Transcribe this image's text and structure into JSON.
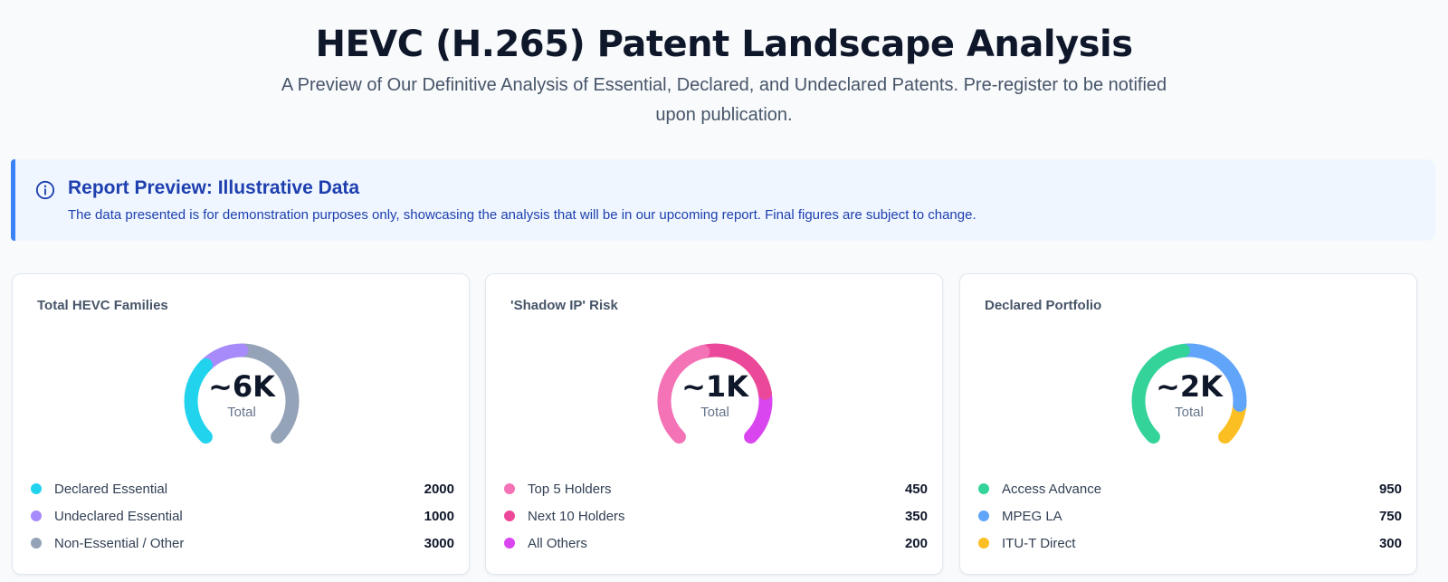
{
  "header": {
    "title": "HEVC (H.265) Patent Landscape Analysis",
    "subtitle": "A Preview of Our Definitive Analysis of Essential, Declared, and Undeclared Patents. Pre-register to be notified upon publication."
  },
  "notice": {
    "icon": "info-circle-icon",
    "title": "Report Preview: Illustrative Data",
    "text": "The data presented is for demonstration purposes only, showcasing the analysis that will be in our upcoming report. Final figures are subject to change.",
    "color": "#1e40af",
    "accent": "#3b82f6"
  },
  "chart_data": [
    {
      "type": "pie",
      "title": "Total HEVC Families",
      "center_value": "~6K",
      "center_label": "Total",
      "categories": [
        "Declared Essential",
        "Undeclared Essential",
        "Non-Essential / Other"
      ],
      "values": [
        2000,
        1000,
        3000
      ],
      "value_labels": [
        "2000",
        "1000",
        "3000"
      ],
      "colors": [
        "#22d3ee",
        "#a78bfa",
        "#94a3b8"
      ]
    },
    {
      "type": "pie",
      "title": "'Shadow IP' Risk",
      "center_value": "~1K",
      "center_label": "Total",
      "categories": [
        "Top 5 Holders",
        "Next 10 Holders",
        "All Others"
      ],
      "values": [
        450,
        350,
        200
      ],
      "value_labels": [
        "450",
        "350",
        "200"
      ],
      "colors": [
        "#f472b6",
        "#ec4899",
        "#d946ef"
      ]
    },
    {
      "type": "pie",
      "title": "Declared Portfolio",
      "center_value": "~2K",
      "center_label": "Total",
      "categories": [
        "Access Advance",
        "MPEG LA",
        "ITU-T Direct"
      ],
      "values": [
        950,
        750,
        300
      ],
      "value_labels": [
        "950",
        "750",
        "300"
      ],
      "colors": [
        "#34d399",
        "#60a5fa",
        "#fbbf24"
      ]
    }
  ]
}
